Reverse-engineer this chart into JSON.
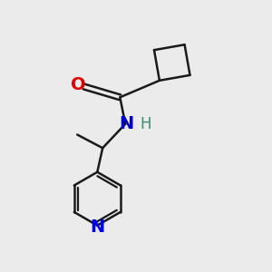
{
  "background_color": "#ebebeb",
  "bond_color": "#1a1a1a",
  "bond_width": 1.8,
  "figsize": [
    3.0,
    3.0
  ],
  "dpi": 100,
  "atoms": {
    "O": {
      "color": "#dd0000",
      "fontsize": 14,
      "fontweight": "bold"
    },
    "N": {
      "color": "#0000cc",
      "fontsize": 14,
      "fontweight": "bold"
    },
    "H": {
      "color": "#3a8a6a",
      "fontsize": 12,
      "fontweight": "normal"
    },
    "N2": {
      "color": "#0000ee",
      "fontsize": 14,
      "fontweight": "bold"
    }
  }
}
